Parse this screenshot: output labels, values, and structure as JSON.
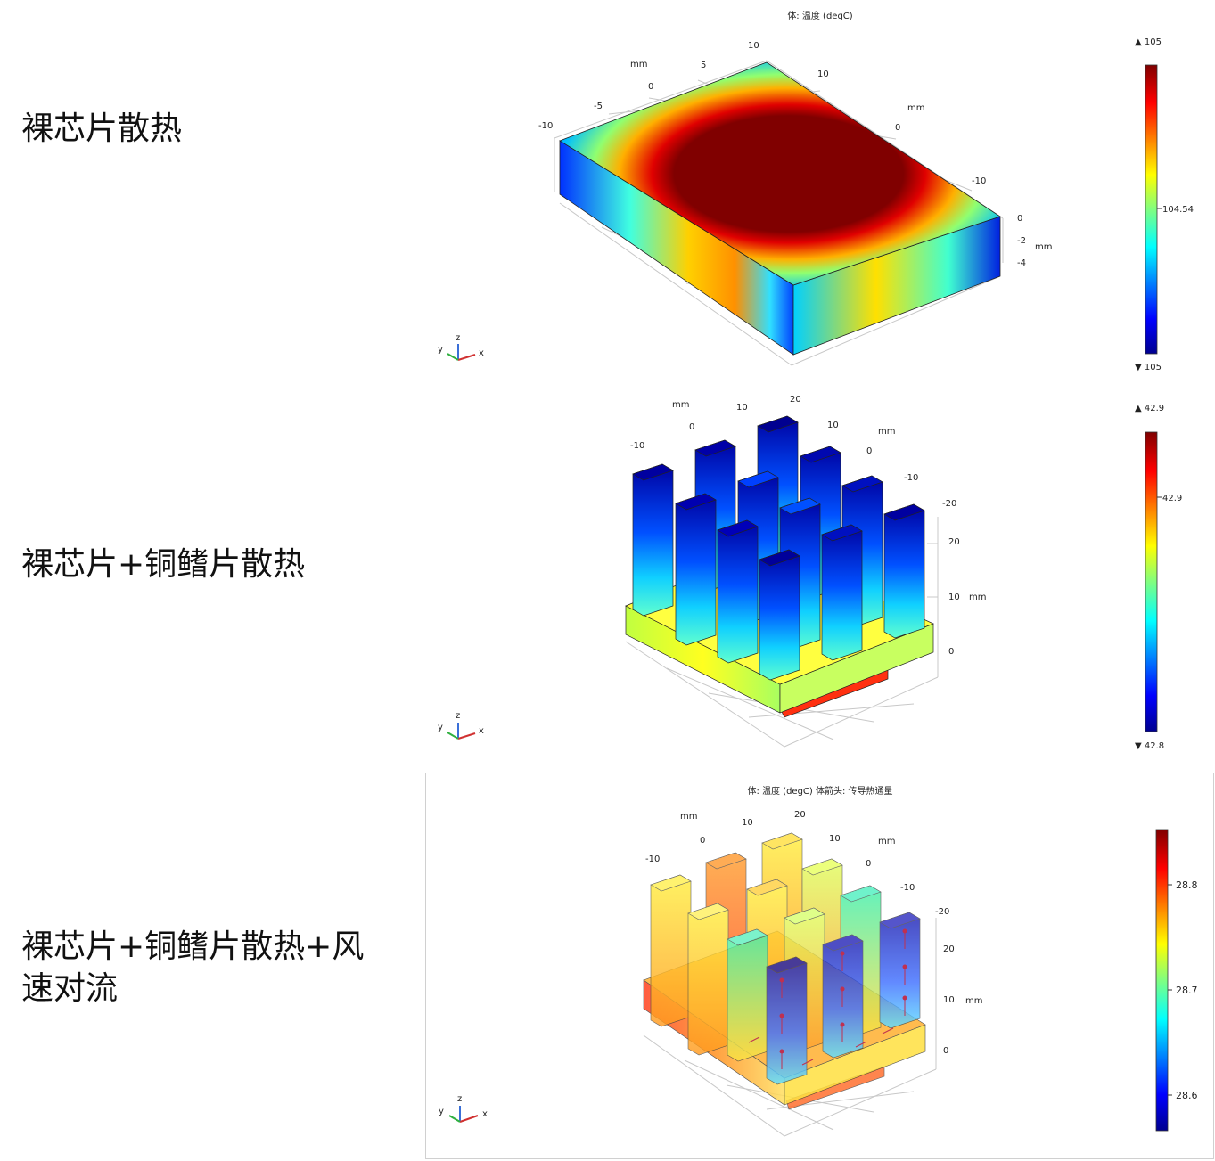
{
  "rows": [
    {
      "label": "裸芯片散热",
      "title": "体: 温度 (degC)",
      "colorbar": {
        "max": "▲ 105",
        "mid": "104.54",
        "min": "▼ 105"
      },
      "axes": {
        "x_ticks": [
          "-10",
          "-5",
          "0",
          "5",
          "10"
        ],
        "x_unit": "mm",
        "y_ticks": [
          "10",
          "0",
          "-10"
        ],
        "y_unit": "mm",
        "z_ticks": [
          "0",
          "-2",
          "-4"
        ],
        "z_unit": "mm"
      }
    },
    {
      "label": "裸芯片+铜鳍片散热",
      "title": "",
      "colorbar": {
        "max": "▲ 42.9",
        "mid": "42.9",
        "min": "▼ 42.8"
      },
      "axes": {
        "x_ticks": [
          "-10",
          "0",
          "10",
          "20"
        ],
        "x_unit": "mm",
        "y_ticks": [
          "10",
          "0",
          "-10",
          "-20"
        ],
        "y_unit": "mm",
        "z_ticks": [
          "20",
          "10",
          "0"
        ],
        "z_unit": "mm"
      }
    },
    {
      "label": "裸芯片+铜鳍片散热+风速对流",
      "title": "体: 温度 (degC)  体箭头: 传导热通量",
      "colorbar": {
        "ticks": [
          "28.8",
          "28.7",
          "28.6"
        ]
      },
      "axes": {
        "x_ticks": [
          "-10",
          "0",
          "10",
          "20"
        ],
        "x_unit": "mm",
        "y_ticks": [
          "10",
          "0",
          "-10",
          "-20"
        ],
        "y_unit": "mm",
        "z_ticks": [
          "20",
          "10",
          "0"
        ],
        "z_unit": "mm"
      }
    }
  ],
  "triad": {
    "x": "x",
    "y": "y",
    "z": "z"
  },
  "colors": {
    "jet_low": "#00008f",
    "jet_high": "#800000"
  }
}
